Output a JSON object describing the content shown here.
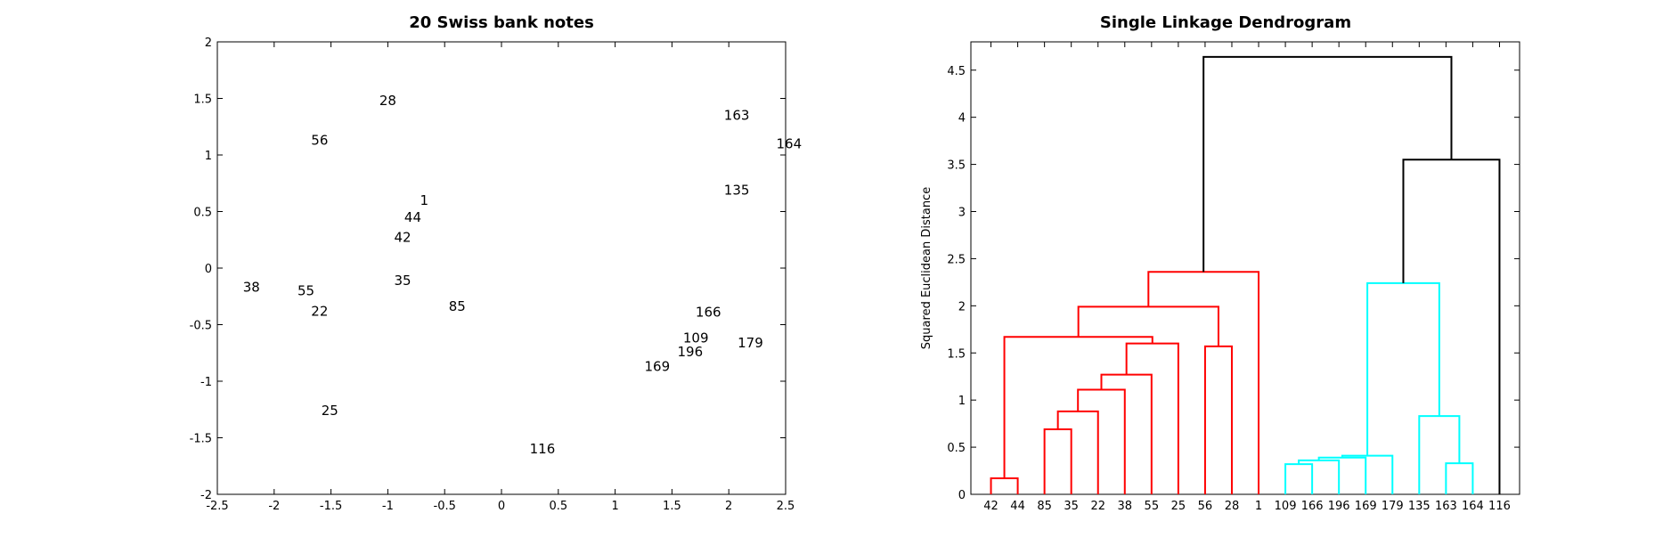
{
  "chart_data": [
    {
      "type": "scatter",
      "title": "20 Swiss bank notes",
      "xlabel": "",
      "ylabel": "",
      "xlim": [
        -2.5,
        2.5
      ],
      "ylim": [
        -2,
        2
      ],
      "xticks": [
        "-2.5",
        "-2",
        "-1.5",
        "-1",
        "-0.5",
        "0",
        "0.5",
        "1",
        "1.5",
        "2",
        "2.5"
      ],
      "yticks": [
        "-2",
        "-1.5",
        "-1",
        "-0.5",
        "0",
        "0.5",
        "1",
        "1.5",
        "2"
      ],
      "points": [
        {
          "label": "28",
          "x": -1.0,
          "y": 1.48
        },
        {
          "label": "56",
          "x": -1.6,
          "y": 1.13
        },
        {
          "label": "1",
          "x": -0.68,
          "y": 0.6
        },
        {
          "label": "44",
          "x": -0.78,
          "y": 0.45
        },
        {
          "label": "42",
          "x": -0.87,
          "y": 0.27
        },
        {
          "label": "38",
          "x": -2.2,
          "y": -0.17
        },
        {
          "label": "55",
          "x": -1.72,
          "y": -0.2
        },
        {
          "label": "22",
          "x": -1.6,
          "y": -0.38
        },
        {
          "label": "35",
          "x": -0.87,
          "y": -0.11
        },
        {
          "label": "85",
          "x": -0.39,
          "y": -0.34
        },
        {
          "label": "25",
          "x": -1.51,
          "y": -1.26
        },
        {
          "label": "116",
          "x": 0.36,
          "y": -1.6
        },
        {
          "label": "163",
          "x": 2.07,
          "y": 1.35
        },
        {
          "label": "164",
          "x": 2.53,
          "y": 1.1
        },
        {
          "label": "135",
          "x": 2.07,
          "y": 0.69
        },
        {
          "label": "166",
          "x": 1.82,
          "y": -0.39
        },
        {
          "label": "109",
          "x": 1.71,
          "y": -0.62
        },
        {
          "label": "196",
          "x": 1.66,
          "y": -0.74
        },
        {
          "label": "179",
          "x": 2.19,
          "y": -0.66
        },
        {
          "label": "169",
          "x": 1.37,
          "y": -0.87
        }
      ]
    },
    {
      "type": "dendrogram",
      "title": "Single Linkage Dendrogram",
      "ylabel": "Squared Euclidean Distance",
      "ylim": [
        0,
        4.8
      ],
      "yticks": [
        "0",
        "0.5",
        "1",
        "1.5",
        "2",
        "2.5",
        "3",
        "3.5",
        "4",
        "4.5"
      ],
      "leaves": [
        "42",
        "44",
        "85",
        "35",
        "22",
        "38",
        "55",
        "25",
        "56",
        "28",
        "1",
        "109",
        "166",
        "196",
        "169",
        "179",
        "135",
        "163",
        "164",
        "116"
      ],
      "colors": {
        "red": "#ff0000",
        "cyan": "#00ffff",
        "black": "#000000"
      },
      "merges": [
        {
          "a": "L:42",
          "b": "L:44",
          "h": 0.17,
          "color": "red"
        },
        {
          "a": "L:85",
          "b": "L:35",
          "h": 0.69,
          "color": "red"
        },
        {
          "a": "M:1",
          "b": "L:22",
          "h": 0.88,
          "color": "red"
        },
        {
          "a": "M:2",
          "b": "L:38",
          "h": 1.11,
          "color": "red"
        },
        {
          "a": "M:3",
          "b": "L:55",
          "h": 1.27,
          "color": "red"
        },
        {
          "a": "M:4",
          "b": "L:25",
          "h": 1.6,
          "color": "red"
        },
        {
          "a": "M:0",
          "b": "M:5",
          "h": 1.67,
          "color": "red"
        },
        {
          "a": "L:56",
          "b": "L:28",
          "h": 1.57,
          "color": "red"
        },
        {
          "a": "M:6",
          "b": "M:7",
          "h": 1.99,
          "color": "red"
        },
        {
          "a": "M:8",
          "b": "L:1",
          "h": 2.36,
          "color": "red"
        },
        {
          "a": "L:109",
          "b": "L:166",
          "h": 0.32,
          "color": "cyan"
        },
        {
          "a": "M:10",
          "b": "L:196",
          "h": 0.36,
          "color": "cyan"
        },
        {
          "a": "M:11",
          "b": "L:169",
          "h": 0.39,
          "color": "cyan"
        },
        {
          "a": "M:12",
          "b": "L:179",
          "h": 0.41,
          "color": "cyan"
        },
        {
          "a": "L:163",
          "b": "L:164",
          "h": 0.33,
          "color": "cyan"
        },
        {
          "a": "L:135",
          "b": "M:14",
          "h": 0.83,
          "color": "cyan"
        },
        {
          "a": "M:13",
          "b": "M:15",
          "h": 2.24,
          "color": "cyan"
        },
        {
          "a": "M:16",
          "b": "L:116",
          "h": 3.55,
          "color": "black"
        },
        {
          "a": "M:9",
          "b": "M:17",
          "h": 4.64,
          "color": "black"
        }
      ]
    }
  ]
}
